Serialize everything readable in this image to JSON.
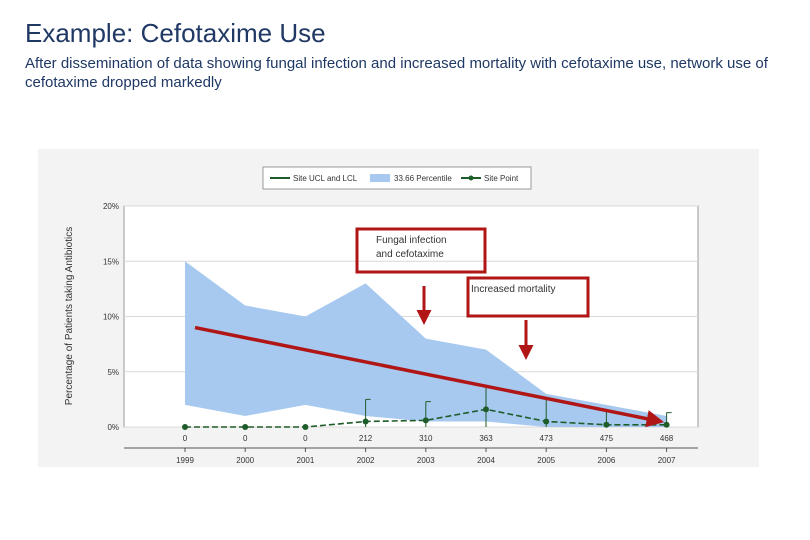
{
  "slide": {
    "title": "Example: Cefotaxime Use",
    "subtitle": "After dissemination of data showing fungal infection and increased mortality with cefotaxime use, network use of cefotaxime dropped markedly"
  },
  "chart_data": {
    "type": "line",
    "x": [
      "1999",
      "2000",
      "2001",
      "2002",
      "2003",
      "2004",
      "2005",
      "2006",
      "2007"
    ],
    "n_labels": [
      "0",
      "0",
      "0",
      "212",
      "310",
      "363",
      "473",
      "475",
      "468"
    ],
    "ylabel": "Percentage of Patients taking Antibiotics",
    "ylim": [
      0,
      20
    ],
    "y_ticks": [
      "0%",
      "5%",
      "10%",
      "15%",
      "20%"
    ],
    "grid": true,
    "legend_position": "top",
    "legend": [
      "Site UCL and LCL",
      "33.66 Percentile",
      "Site Point"
    ],
    "series": [
      {
        "name": "Site Point",
        "values": [
          0.0,
          0.0,
          0.0,
          0.5,
          0.6,
          1.6,
          0.5,
          0.2,
          0.2
        ]
      },
      {
        "name": "33.66 Percentile",
        "upper": [
          15.0,
          11.0,
          10.0,
          13.0,
          8.0,
          7.0,
          3.0,
          2.0,
          1.0
        ],
        "lower": [
          2.0,
          1.0,
          2.0,
          1.0,
          0.5,
          0.5,
          0.0,
          0.0,
          0.0
        ]
      },
      {
        "name": "Site UCL and LCL",
        "ucl": [
          null,
          null,
          null,
          2.5,
          2.3,
          3.6,
          2.6,
          1.4,
          1.3
        ],
        "lcl": [
          null,
          null,
          null,
          0.0,
          0.0,
          0.0,
          0.0,
          0.0,
          0.0
        ]
      }
    ],
    "trend_arrow": {
      "from": {
        "x": "1999",
        "y": 9.0
      },
      "to": {
        "x": "2007",
        "y": 0.5
      }
    },
    "annotations": [
      {
        "lines": [
          "Fungal infection",
          "and cefotaxime"
        ],
        "arrow_x": "2003"
      },
      {
        "lines": [
          "Increased mortality"
        ],
        "arrow_x": "2004"
      }
    ],
    "colors": {
      "band": "#a7c9f0",
      "site": "#1e5c2a",
      "trend": "#b01616",
      "box": "#b01616",
      "grid": "#d9d9d9"
    }
  }
}
